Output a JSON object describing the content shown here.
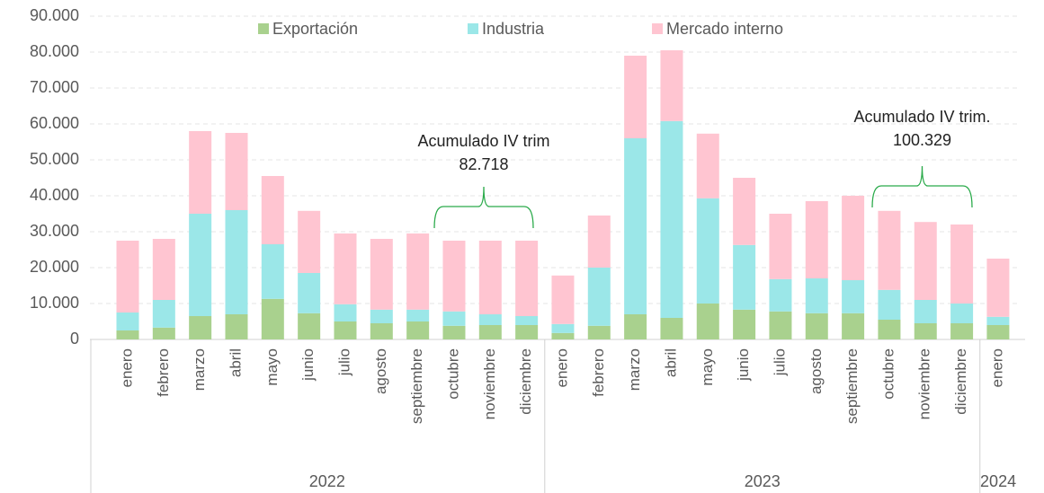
{
  "chart_data": {
    "type": "stacked_bar",
    "categories": [
      "enero",
      "febrero",
      "marzo",
      "abril",
      "mayo",
      "junio",
      "julio",
      "agosto",
      "septiembre",
      "octubre",
      "noviembre",
      "diciembre",
      "enero",
      "febrero",
      "marzo",
      "abril",
      "mayo",
      "junio",
      "julio",
      "agosto",
      "septiembre",
      "octubre",
      "noviembre",
      "diciembre",
      "enero"
    ],
    "x_groups": [
      {
        "label": "2022",
        "size": 12
      },
      {
        "label": "2023",
        "size": 12
      },
      {
        "label": "2024",
        "size": 1
      }
    ],
    "series": [
      {
        "name": "Exportación",
        "color": "#a9d18e",
        "values": [
          2500,
          3300,
          6500,
          7000,
          11300,
          7300,
          5000,
          4500,
          5000,
          3800,
          4000,
          4000,
          1800,
          3800,
          7000,
          6000,
          10000,
          8300,
          7800,
          7300,
          7300,
          5500,
          4500,
          4500,
          4000
        ]
      },
      {
        "name": "Industria",
        "color": "#9be7e8",
        "values": [
          5000,
          7700,
          28500,
          29000,
          15200,
          11200,
          4800,
          3800,
          3300,
          4000,
          3000,
          2500,
          2500,
          16200,
          49000,
          54800,
          29300,
          18000,
          9000,
          9700,
          9200,
          8300,
          6500,
          5500,
          2300
        ]
      },
      {
        "name": "Mercado interno",
        "color": "#ffc5d1",
        "values": [
          20000,
          17000,
          23000,
          21500,
          19000,
          17300,
          19700,
          19700,
          21200,
          19700,
          20500,
          21000,
          13500,
          14500,
          23000,
          19700,
          18000,
          18700,
          18200,
          21500,
          23500,
          22000,
          21700,
          22000,
          16200
        ]
      }
    ],
    "ylim": [
      0,
      90000
    ],
    "yticks": [
      0,
      {
        "value": 10000,
        "label": "10.000"
      },
      {
        "value": 20000,
        "label": "20.000"
      },
      {
        "value": 30000,
        "label": "30.000"
      },
      {
        "value": 40000,
        "label": "40.000"
      },
      {
        "value": 50000,
        "label": "50.000"
      },
      {
        "value": 60000,
        "label": "60.000"
      },
      {
        "value": 70000,
        "label": "70.000"
      },
      {
        "value": 80000,
        "label": "80.000"
      },
      {
        "value": 90000,
        "label": "90.000"
      }
    ],
    "grid": true,
    "legend": "top",
    "annotations": [
      {
        "lines": [
          "Acumulado IV trim",
          "82.718"
        ]
      },
      {
        "lines": [
          "Acumulado IV trim.",
          "100.329"
        ]
      }
    ]
  }
}
